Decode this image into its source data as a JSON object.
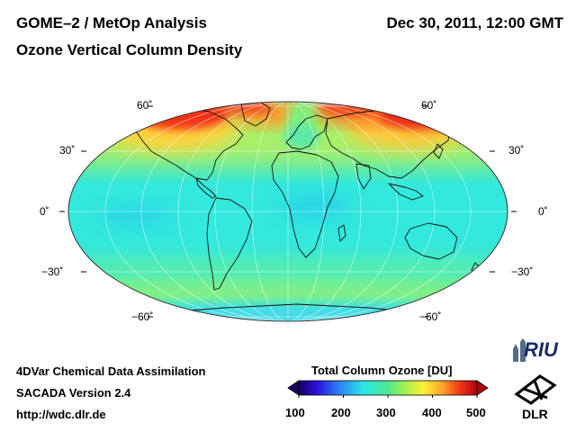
{
  "header": {
    "title": "GOME–2 / MetOp Analysis",
    "subtitle": "Ozone Vertical Column Density",
    "datetime": "Dec 30, 2011, 12:00 GMT"
  },
  "map": {
    "projection": "Mollweide",
    "latitude_labels": {
      "left": [
        "60˚",
        "30˚",
        "0˚",
        "−30˚",
        "−60˚"
      ],
      "right": [
        "60˚",
        "30˚",
        "0˚",
        "−30˚",
        "−60˚"
      ]
    }
  },
  "footer": {
    "line1": "4DVar Chemical Data Assimilation",
    "line2": "SACADA Version 2.4",
    "line3": "http://wdc.dlr.de"
  },
  "colorbar": {
    "title": "Total Column Ozone [DU]",
    "ticks": [
      "100",
      "200",
      "300",
      "400",
      "500"
    ],
    "min": 100,
    "max": 500
  },
  "logos": {
    "riu": "RIU",
    "dlr": "DLR"
  }
}
